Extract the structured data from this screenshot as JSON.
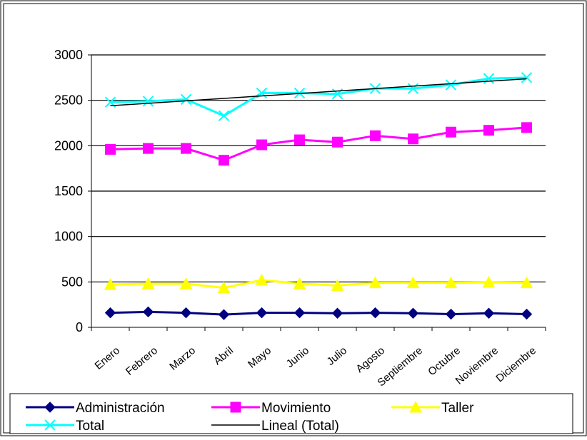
{
  "chart_data": {
    "type": "line",
    "title": "",
    "xlabel": "",
    "ylabel": "",
    "categories": [
      "Enero",
      "Febrero",
      "Marzo",
      "Abril",
      "Mayo",
      "Junio",
      "Julio",
      "Agosto",
      "Septiembre",
      "Octubre",
      "Noviembre",
      "Diciembre"
    ],
    "ylim": [
      0,
      3000
    ],
    "yticks": [
      0,
      500,
      1000,
      1500,
      2000,
      2500,
      3000
    ],
    "grid": "horizontal",
    "legend": "bottom",
    "series": [
      {
        "name": "Administración",
        "color": "#000080",
        "marker": "diamond",
        "values": [
          160,
          170,
          160,
          140,
          160,
          160,
          155,
          160,
          155,
          145,
          155,
          145
        ]
      },
      {
        "name": "Movimiento",
        "color": "#ff00ff",
        "marker": "square",
        "values": [
          1960,
          1970,
          1970,
          1840,
          2010,
          2065,
          2040,
          2110,
          2075,
          2150,
          2170,
          2200
        ]
      },
      {
        "name": "Taller",
        "color": "#ffff00",
        "marker": "triangle",
        "values": [
          470,
          480,
          480,
          435,
          520,
          480,
          460,
          490,
          490,
          490,
          495,
          490
        ]
      },
      {
        "name": "Total",
        "color": "#00ffff",
        "marker": "x",
        "values": [
          2480,
          2490,
          2510,
          2330,
          2580,
          2580,
          2570,
          2630,
          2630,
          2670,
          2740,
          2750
        ]
      },
      {
        "name": "Lineal (Total)",
        "color": "#000000",
        "marker": "none",
        "values": [
          2440,
          2467,
          2494,
          2521,
          2548,
          2575,
          2602,
          2629,
          2656,
          2683,
          2710,
          2737
        ]
      }
    ]
  }
}
